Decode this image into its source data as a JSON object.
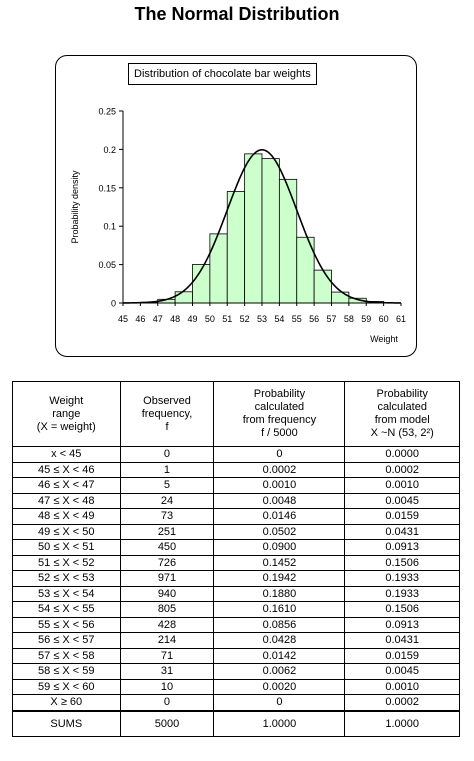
{
  "page_title": "The Normal Distribution",
  "chart_data": {
    "type": "bar",
    "title": "Distribution of chocolate bar weights",
    "xlabel": "Weight",
    "ylabel": "Probability density",
    "x_ticks": [
      "45",
      "46",
      "47",
      "48",
      "49",
      "50",
      "51",
      "52",
      "53",
      "54",
      "55",
      "56",
      "57",
      "58",
      "59",
      "60",
      "61"
    ],
    "xlim": [
      45,
      61
    ],
    "ylim": [
      0,
      0.25
    ],
    "y_ticks": [
      "0",
      "0.05",
      "0.1",
      "0.15",
      "0.2",
      "0.25"
    ],
    "bars": {
      "x_start": [
        45,
        46,
        47,
        48,
        49,
        50,
        51,
        52,
        53,
        54,
        55,
        56,
        57,
        58,
        59
      ],
      "values": [
        0.0002,
        0.001,
        0.0048,
        0.0146,
        0.0502,
        0.09,
        0.1452,
        0.1942,
        0.188,
        0.161,
        0.0856,
        0.0428,
        0.0142,
        0.0062,
        0.002
      ],
      "fill": "#ccffcc"
    },
    "curve": {
      "type": "normal",
      "mean": 53,
      "sd": 2,
      "color": "#000000"
    },
    "grid": false
  },
  "table": {
    "headers": [
      [
        "Weight",
        "range",
        "(X = weight)"
      ],
      [
        "Observed",
        "frequency,",
        "f"
      ],
      [
        "Probability",
        "calculated",
        "from frequency",
        "f / 5000"
      ],
      [
        "Probability",
        "calculated",
        "from model",
        "X ~N (53, 2²)"
      ]
    ],
    "rows": [
      [
        "x < 45",
        "0",
        "0",
        "0.0000"
      ],
      [
        "45 ≤ X < 46",
        "1",
        "0.0002",
        "0.0002"
      ],
      [
        "46 ≤ X < 47",
        "5",
        "0.0010",
        "0.0010"
      ],
      [
        "47 ≤ X < 48",
        "24",
        "0.0048",
        "0.0045"
      ],
      [
        "48 ≤ X < 49",
        "73",
        "0.0146",
        "0.0159"
      ],
      [
        "49 ≤ X < 50",
        "251",
        "0.0502",
        "0.0431"
      ],
      [
        "50 ≤ X < 51",
        "450",
        "0.0900",
        "0.0913"
      ],
      [
        "51 ≤ X < 52",
        "726",
        "0.1452",
        "0.1506"
      ],
      [
        "52 ≤ X < 53",
        "971",
        "0.1942",
        "0.1933"
      ],
      [
        "53 ≤ X < 54",
        "940",
        "0.1880",
        "0.1933"
      ],
      [
        "54 ≤ X < 55",
        "805",
        "0.1610",
        "0.1506"
      ],
      [
        "55 ≤ X < 56",
        "428",
        "0.0856",
        "0.0913"
      ],
      [
        "56 ≤ X < 57",
        "214",
        "0.0428",
        "0.0431"
      ],
      [
        "57 ≤ X < 58",
        "71",
        "0.0142",
        "0.0159"
      ],
      [
        "58 ≤ X < 59",
        "31",
        "0.0062",
        "0.0045"
      ],
      [
        "59 ≤ X < 60",
        "10",
        "0.0020",
        "0.0010"
      ],
      [
        "X ≥ 60",
        "0",
        "0",
        "0.0002"
      ]
    ],
    "sums": [
      "SUMS",
      "5000",
      "1.0000",
      "1.0000"
    ]
  }
}
